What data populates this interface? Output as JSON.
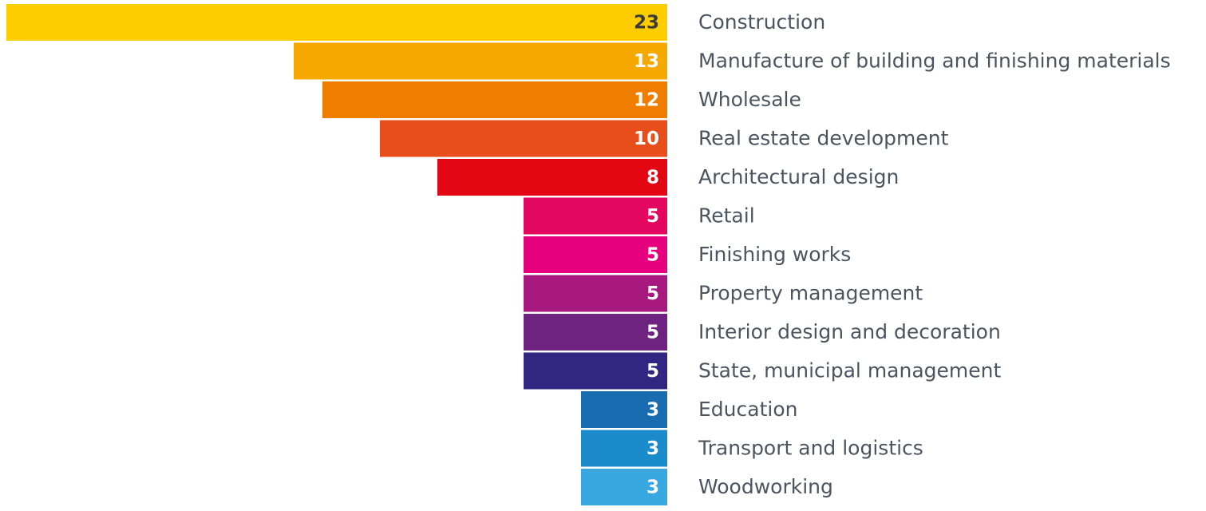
{
  "chart_data": {
    "type": "bar",
    "orientation": "horizontal",
    "categories": [
      "Construction",
      "Manufacture of building and finishing materials",
      "Wholesale",
      "Real estate development",
      "Architectural design",
      "Retail",
      "Finishing works",
      "Property management",
      "Interior design and decoration",
      "State, municipal management",
      "Education",
      "Transport and logistics",
      "Woodworking"
    ],
    "values": [
      23,
      13,
      12,
      10,
      8,
      5,
      5,
      5,
      5,
      5,
      3,
      3,
      3
    ],
    "colors": [
      "#ffcc00",
      "#f5a800",
      "#ee7d00",
      "#e84e1b",
      "#e30613",
      "#e3075f",
      "#e6007e",
      "#a8197f",
      "#6d237f",
      "#312783",
      "#1a6cb1",
      "#1b8bcc",
      "#3aa8e0"
    ],
    "label_colors": [
      "#3a3a3a",
      "#ffffff",
      "#ffffff",
      "#ffffff",
      "#ffffff",
      "#ffffff",
      "#ffffff",
      "#ffffff",
      "#ffffff",
      "#ffffff",
      "#ffffff",
      "#ffffff",
      "#ffffff"
    ],
    "xlim": [
      0,
      23
    ]
  }
}
